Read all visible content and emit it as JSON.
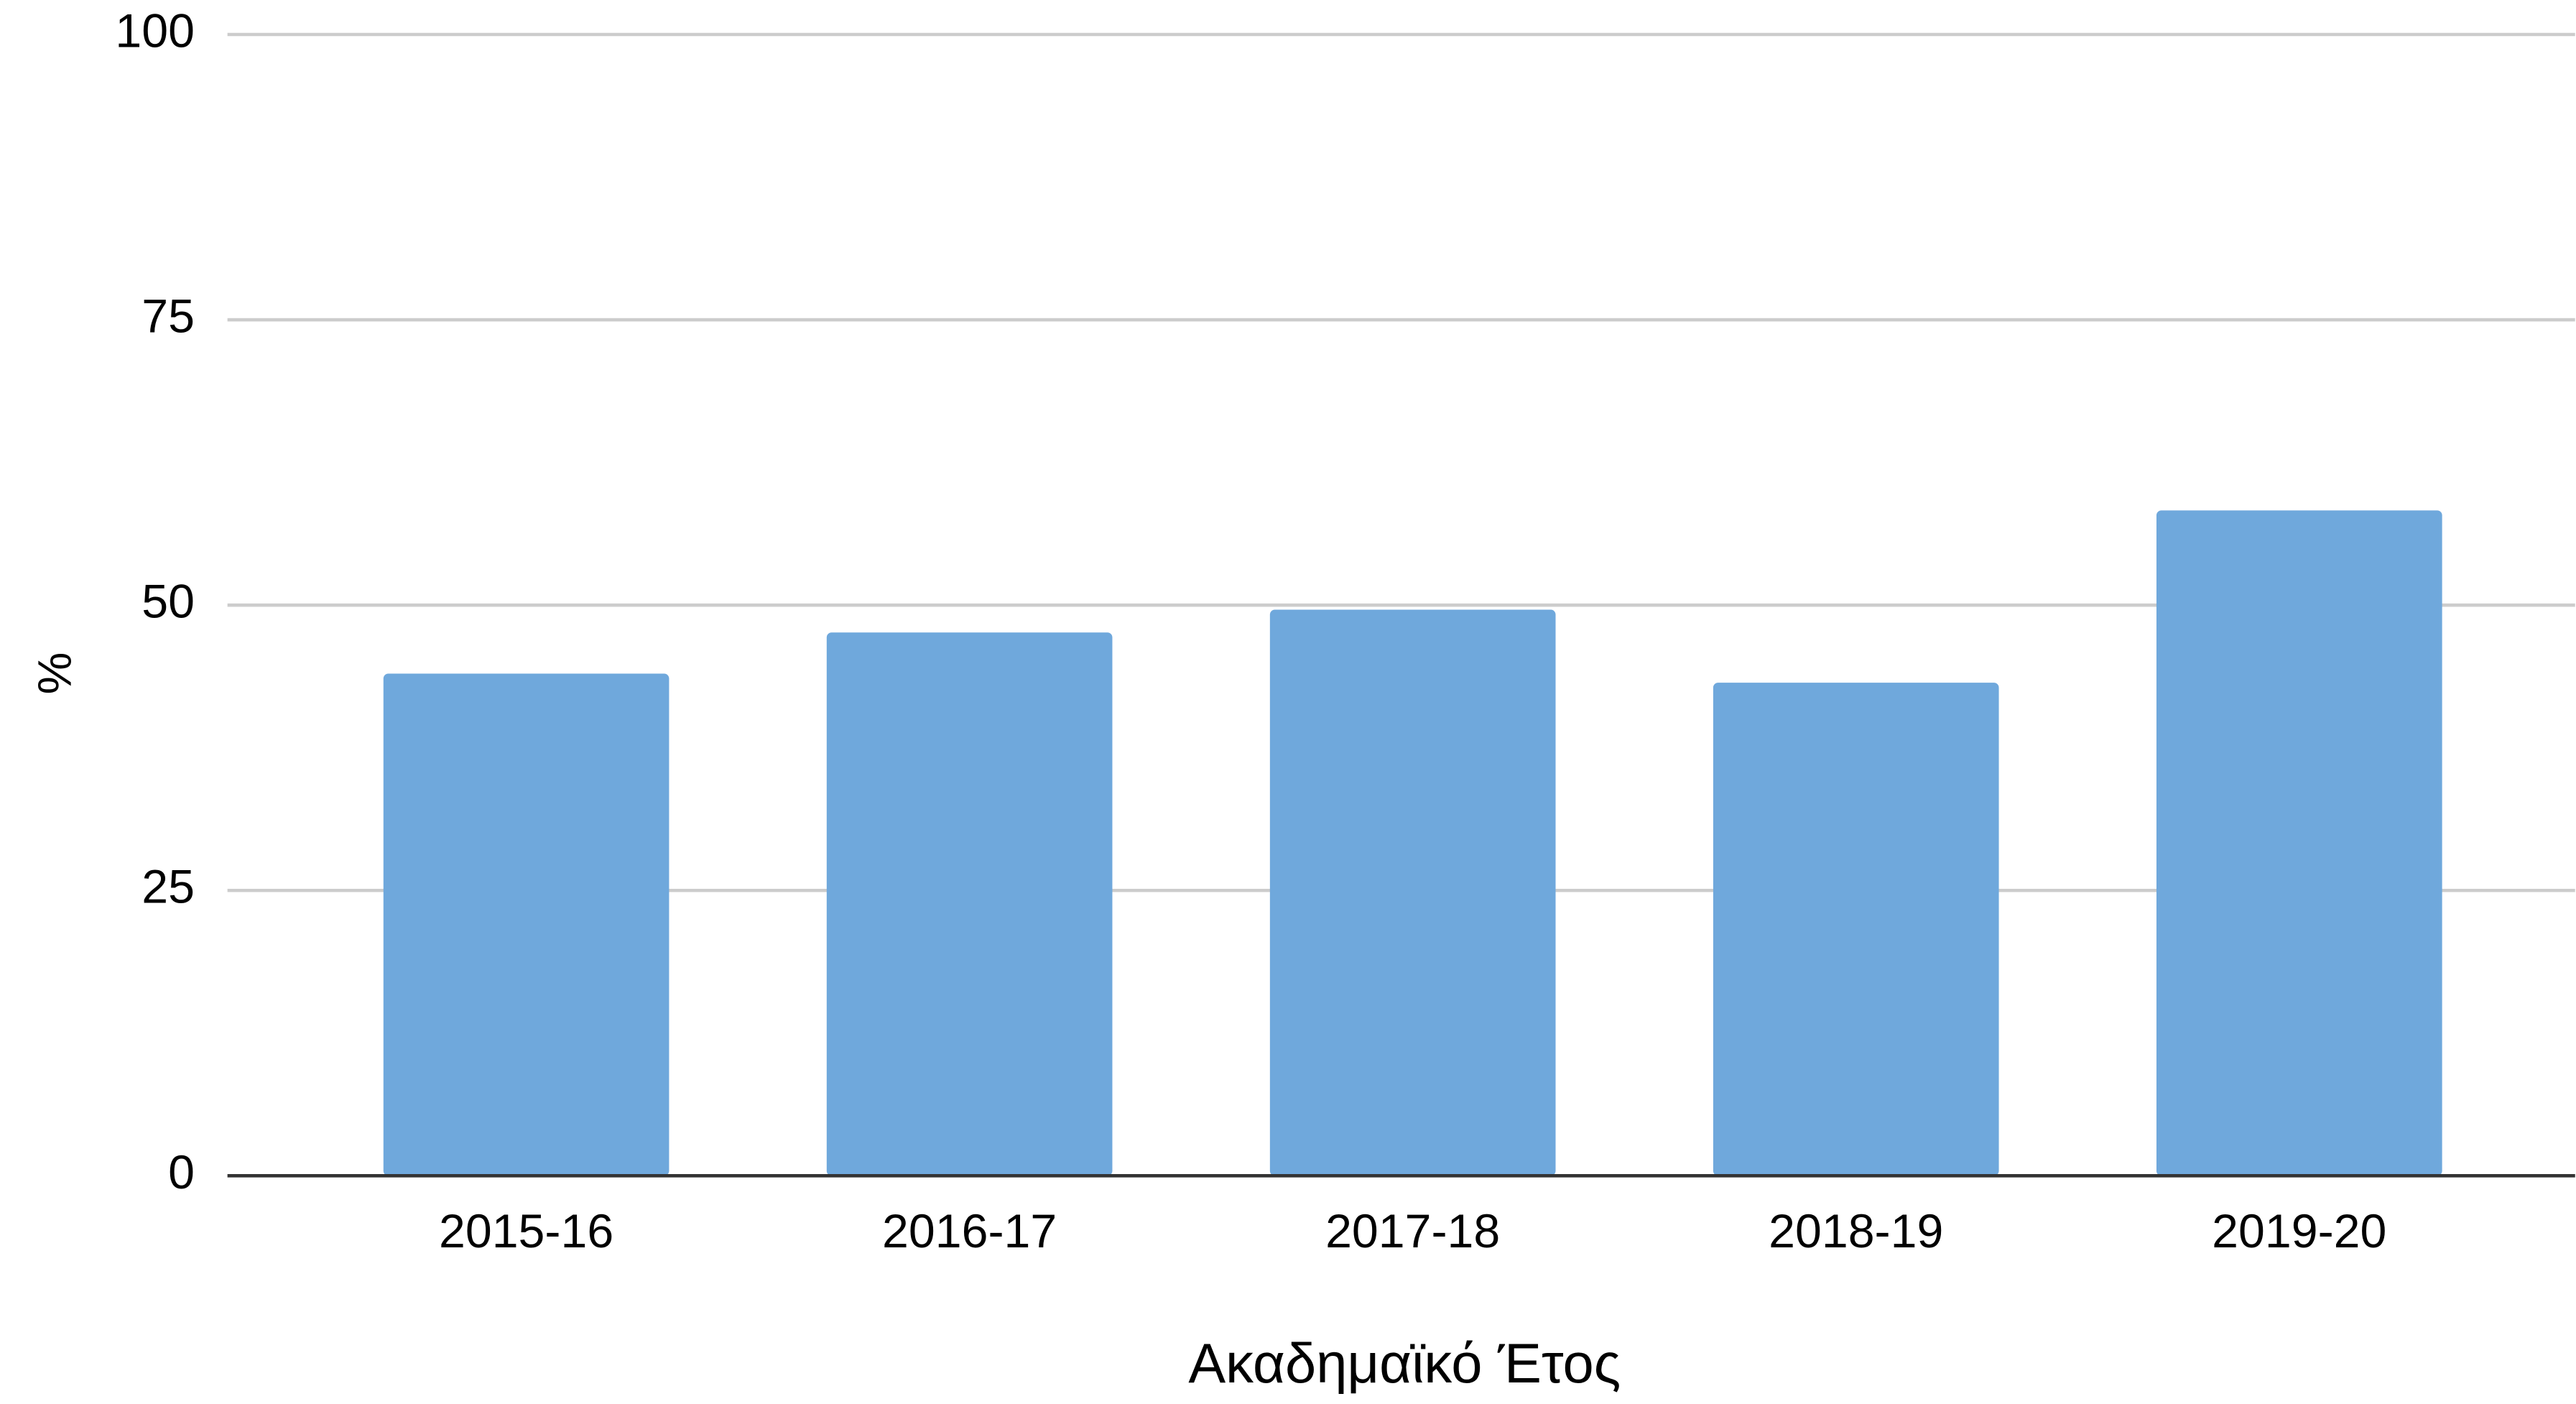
{
  "chart_data": {
    "type": "bar",
    "x_label": "Ακαδημαϊκό Έτος",
    "y_label": "%",
    "categories": [
      "2015-16",
      "2016-17",
      "2017-18",
      "2018-19",
      "2019-20"
    ],
    "values": [
      44.0,
      47.6,
      49.6,
      43.2,
      58.3
    ],
    "color": "#6fa8dc",
    "ylim": [
      0,
      100
    ],
    "yticks": [
      0,
      25,
      50,
      75,
      100
    ],
    "grid": true
  }
}
